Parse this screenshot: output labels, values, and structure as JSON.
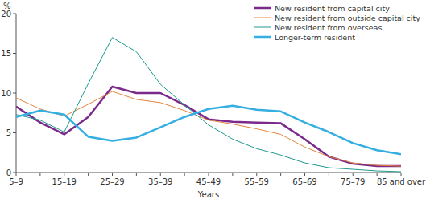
{
  "chart_data": {
    "type": "line",
    "y_label": "%",
    "x_label": "Years",
    "categories": [
      "5–9",
      null,
      "15–19",
      null,
      "25–29",
      null,
      "35–39",
      null,
      "45–49",
      null,
      "55–59",
      null,
      "65–69",
      null,
      "75–79",
      null,
      "85 and over"
    ],
    "series": [
      {
        "name": "New resident from capital city",
        "color": "#7b2a8b",
        "values": [
          8.3,
          6.3,
          4.8,
          7.0,
          10.8,
          10.0,
          10.0,
          8.5,
          6.7,
          6.4,
          6.3,
          6.2,
          4.2,
          2.0,
          1.1,
          0.8,
          0.8
        ]
      },
      {
        "name": "New resident from outside capital city",
        "color": "#e4843f",
        "values": [
          9.4,
          8.0,
          7.1,
          8.6,
          10.2,
          9.2,
          8.8,
          7.8,
          6.6,
          6.1,
          5.5,
          4.8,
          3.2,
          2.0,
          1.2,
          0.9,
          0.8
        ]
      },
      {
        "name": "New resident from overseas",
        "color": "#1f9a90",
        "values": [
          7.3,
          6.6,
          5.1,
          11.2,
          17.0,
          15.2,
          11.1,
          8.5,
          6.0,
          4.2,
          3.0,
          2.2,
          1.2,
          0.6,
          0.4,
          0.2,
          0.1
        ]
      },
      {
        "name": "Longer-term resident",
        "color": "#35aee2",
        "values": [
          7.0,
          7.8,
          7.3,
          4.5,
          4.0,
          4.4,
          5.7,
          7.0,
          8.0,
          8.4,
          7.9,
          7.7,
          6.3,
          5.1,
          3.7,
          2.8,
          2.3
        ]
      }
    ],
    "ylim": [
      0,
      20
    ],
    "yticks": [
      0,
      5,
      10,
      15,
      20
    ],
    "grid": false,
    "legend": "upper right"
  }
}
